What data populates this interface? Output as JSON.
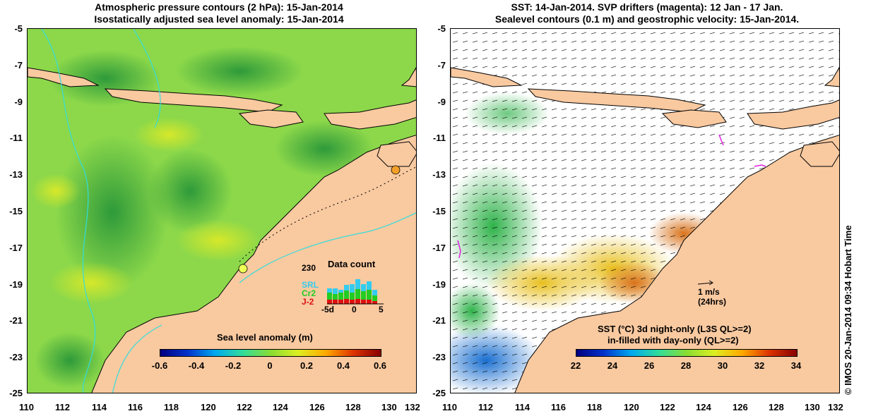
{
  "left_panel": {
    "title_line1": "Atmospheric pressure contours (2 hPa): 15-Jan-2014",
    "title_line2": "Isostatically adjusted sea level anomaly: 15-Jan-2014",
    "colorbar": {
      "title": "Sea level anomaly (m)",
      "ticks": [
        "-0.6",
        "-0.4",
        "-0.2",
        "0",
        "0.2",
        "0.4",
        "0.6"
      ]
    },
    "data_count": {
      "title": "Data count",
      "max_label": "230",
      "sources": [
        {
          "label": "SRL",
          "color": "#33ccee"
        },
        {
          "label": "Cr2",
          "color": "#22cc22"
        },
        {
          "label": "J-2",
          "color": "#dd1111"
        }
      ],
      "x_ticks": [
        "-5d",
        "0",
        "5"
      ]
    }
  },
  "right_panel": {
    "title_line1": "SST: 14-Jan-2014. SVP drifters (magenta): 12 Jan - 17 Jan.",
    "title_line2": "Sealevel contours (0.1 m) and geostrophic velocity: 15-Jan-2014.",
    "scale_arrow_label_1": "1 m/s",
    "scale_arrow_label_2": "(24hrs)",
    "colorbar": {
      "title_line1": "SST (°C)  3d night-only (L3S QL>=2)",
      "title_line2": "in-filled with day-only (QL>=2)",
      "ticks": [
        "22",
        "24",
        "26",
        "28",
        "30",
        "32",
        "34"
      ]
    }
  },
  "axes": {
    "y_ticks": [
      "-5",
      "-7",
      "-9",
      "-11",
      "-13",
      "-15",
      "-17",
      "-19",
      "-21",
      "-23",
      "-25"
    ],
    "x_ticks": [
      "110",
      "112",
      "114",
      "116",
      "118",
      "120",
      "122",
      "124",
      "126",
      "128",
      "130",
      "132"
    ]
  },
  "copyright": "© IMOS 20-Jan-2014 09:34 Hobart Time",
  "colors": {
    "land": "#f9c9a0",
    "sla_base": "#8ed94a",
    "sst_warm": "#e07a1a",
    "sst_cold": "#1a6fd0"
  }
}
